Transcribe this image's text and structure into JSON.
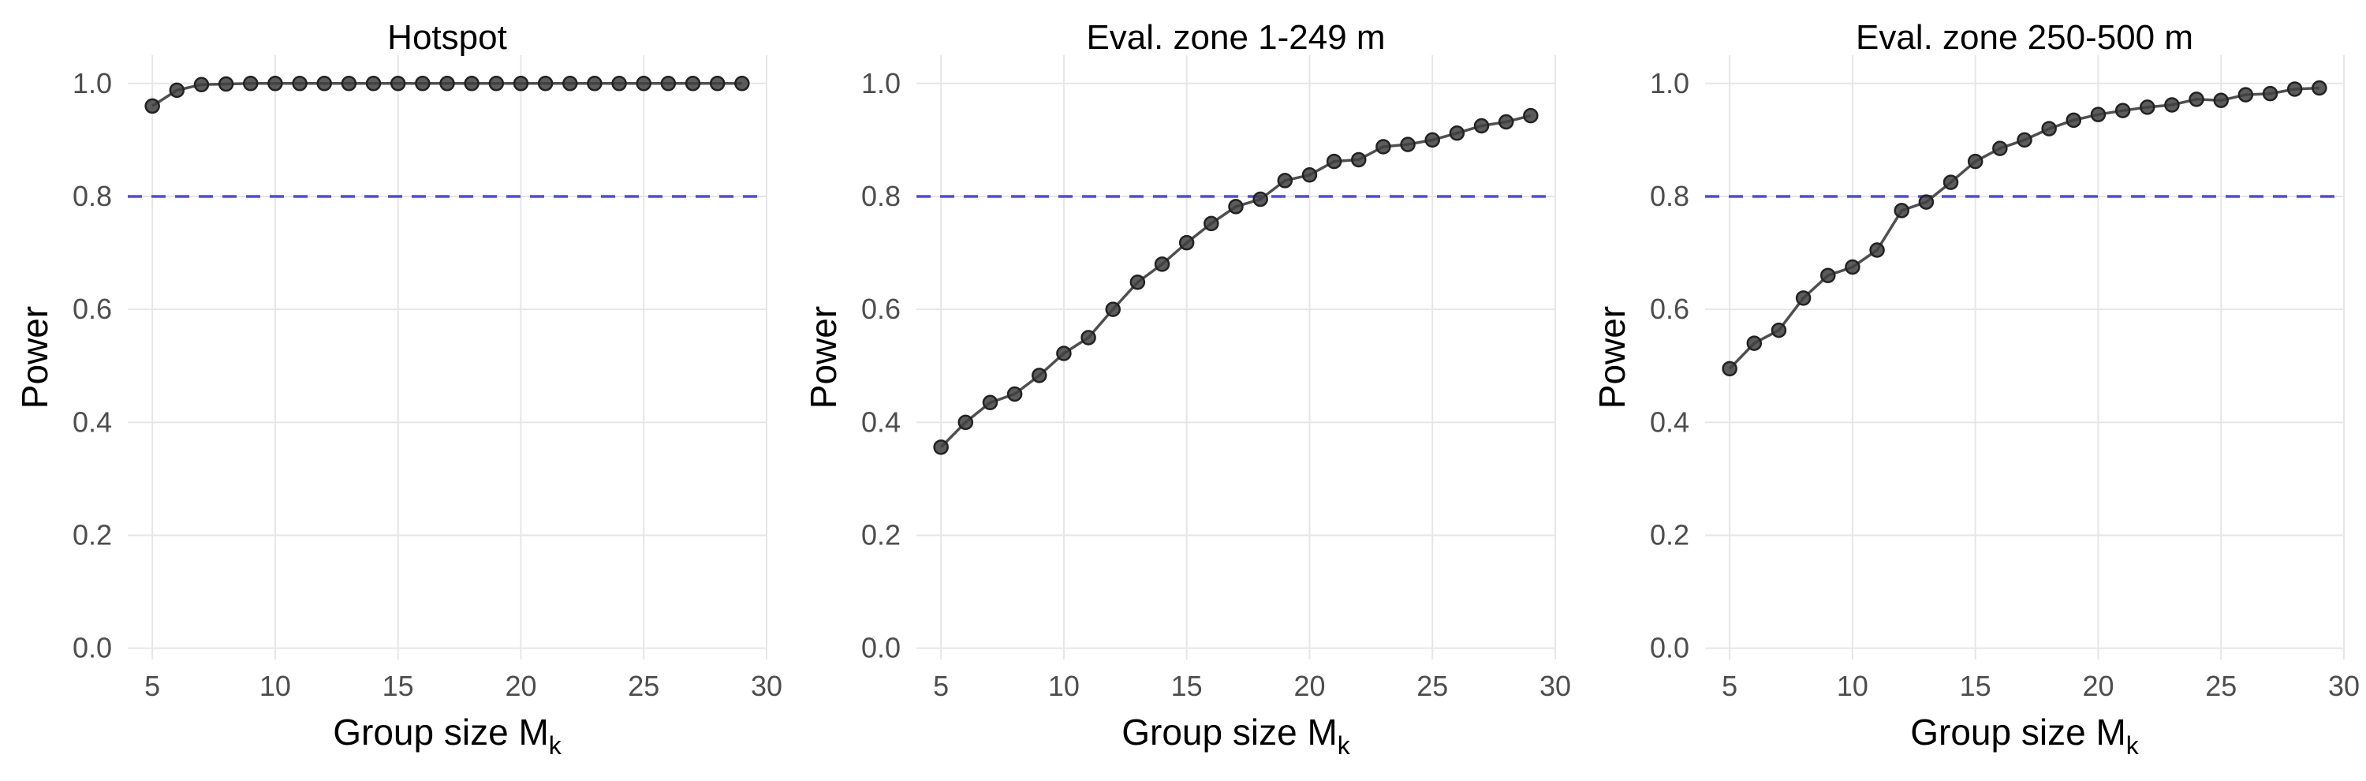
{
  "colors": {
    "points": "#3f3f3f",
    "line": "#4f4f4f",
    "reference": "#4a4af0",
    "grid": "#e6e6e6"
  },
  "chart_data": [
    {
      "type": "line",
      "title": "Hotspot",
      "xlabel": "Group size M",
      "xlabel_sub": "k",
      "ylabel": "Power",
      "xlim": [
        4,
        30
      ],
      "ylim": [
        -0.02,
        1.05
      ],
      "xticks": [
        5,
        10,
        15,
        20,
        25,
        30
      ],
      "yticks": [
        "0.0",
        "0.2",
        "0.4",
        "0.6",
        "0.8",
        "1.0"
      ],
      "reference_line": {
        "y": 0.8,
        "style": "dashed",
        "color": "blue"
      },
      "grid": true,
      "x": [
        5,
        6,
        7,
        8,
        9,
        10,
        11,
        12,
        13,
        14,
        15,
        16,
        17,
        18,
        19,
        20,
        21,
        22,
        23,
        24,
        25,
        26,
        27,
        28,
        29
      ],
      "y": [
        0.96,
        0.988,
        0.998,
        0.999,
        1.0,
        1.0,
        1.0,
        1.0,
        1.0,
        1.0,
        1.0,
        1.0,
        1.0,
        1.0,
        1.0,
        1.0,
        1.0,
        1.0,
        1.0,
        1.0,
        1.0,
        1.0,
        1.0,
        1.0,
        1.0
      ]
    },
    {
      "type": "line",
      "title": "Eval. zone 1-249 m",
      "xlabel": "Group size M",
      "xlabel_sub": "k",
      "ylabel": "Power",
      "xlim": [
        4,
        30
      ],
      "ylim": [
        -0.02,
        1.05
      ],
      "xticks": [
        5,
        10,
        15,
        20,
        25,
        30
      ],
      "yticks": [
        "0.0",
        "0.2",
        "0.4",
        "0.6",
        "0.8",
        "1.0"
      ],
      "reference_line": {
        "y": 0.8,
        "style": "dashed",
        "color": "blue"
      },
      "grid": true,
      "x": [
        5,
        6,
        7,
        8,
        9,
        10,
        11,
        12,
        13,
        14,
        15,
        16,
        17,
        18,
        19,
        20,
        21,
        22,
        23,
        24,
        25,
        26,
        27,
        28,
        29
      ],
      "y": [
        0.356,
        0.4,
        0.435,
        0.45,
        0.483,
        0.522,
        0.55,
        0.6,
        0.648,
        0.68,
        0.718,
        0.752,
        0.782,
        0.795,
        0.828,
        0.838,
        0.862,
        0.865,
        0.888,
        0.892,
        0.9,
        0.912,
        0.925,
        0.932,
        0.943
      ]
    },
    {
      "type": "line",
      "title": "Eval. zone 250-500 m",
      "xlabel": "Group size M",
      "xlabel_sub": "k",
      "ylabel": "Power",
      "xlim": [
        4,
        30
      ],
      "ylim": [
        -0.02,
        1.05
      ],
      "xticks": [
        5,
        10,
        15,
        20,
        25,
        30
      ],
      "yticks": [
        "0.0",
        "0.2",
        "0.4",
        "0.6",
        "0.8",
        "1.0"
      ],
      "reference_line": {
        "y": 0.8,
        "style": "dashed",
        "color": "blue"
      },
      "grid": true,
      "x": [
        5,
        6,
        7,
        8,
        9,
        10,
        11,
        12,
        13,
        14,
        15,
        16,
        17,
        18,
        19,
        20,
        21,
        22,
        23,
        24,
        25,
        26,
        27,
        28,
        29
      ],
      "y": [
        0.495,
        0.54,
        0.563,
        0.62,
        0.66,
        0.675,
        0.705,
        0.775,
        0.79,
        0.825,
        0.862,
        0.885,
        0.9,
        0.92,
        0.935,
        0.945,
        0.952,
        0.958,
        0.962,
        0.972,
        0.97,
        0.98,
        0.982,
        0.99,
        0.992
      ]
    }
  ]
}
